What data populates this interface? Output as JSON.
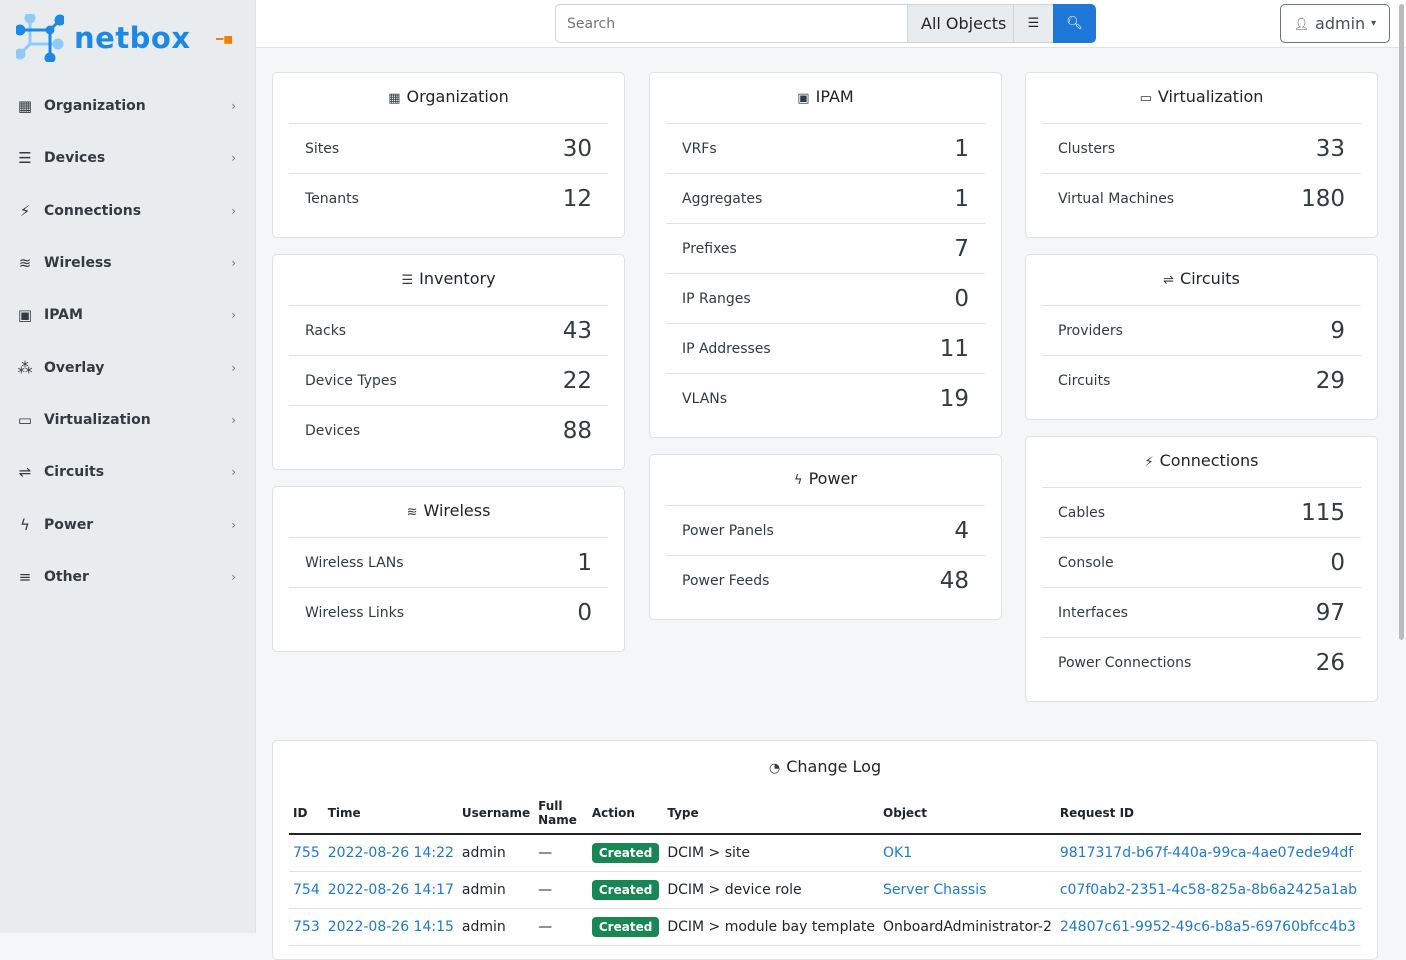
{
  "brand": {
    "name": "netbox",
    "accent": "#1e88e5"
  },
  "sidebar": {
    "items": [
      {
        "label": "Organization",
        "icon": "building-icon",
        "g": "▦"
      },
      {
        "label": "Devices",
        "icon": "server-icon",
        "g": "☰"
      },
      {
        "label": "Connections",
        "icon": "plug-icon",
        "g": "⚡"
      },
      {
        "label": "Wireless",
        "icon": "wifi-icon",
        "g": "≋"
      },
      {
        "label": "IPAM",
        "icon": "ip-icon",
        "g": "▣"
      },
      {
        "label": "Overlay",
        "icon": "graph-icon",
        "g": "⁂"
      },
      {
        "label": "Virtualization",
        "icon": "monitor-icon",
        "g": "▭"
      },
      {
        "label": "Circuits",
        "icon": "circuit-icon",
        "g": "⇌"
      },
      {
        "label": "Power",
        "icon": "flash-icon",
        "g": "ϟ"
      },
      {
        "label": "Other",
        "icon": "menu-icon",
        "g": "≡"
      }
    ]
  },
  "header": {
    "search_placeholder": "Search",
    "object_type": "All Objects",
    "user": "admin"
  },
  "cards": {
    "organization": {
      "title": "Organization",
      "rows": [
        [
          "Sites",
          "30"
        ],
        [
          "Tenants",
          "12"
        ]
      ]
    },
    "inventory": {
      "title": "Inventory",
      "rows": [
        [
          "Racks",
          "43"
        ],
        [
          "Device Types",
          "22"
        ],
        [
          "Devices",
          "88"
        ]
      ]
    },
    "wireless": {
      "title": "Wireless",
      "rows": [
        [
          "Wireless LANs",
          "1"
        ],
        [
          "Wireless Links",
          "0"
        ]
      ]
    },
    "ipam": {
      "title": "IPAM",
      "rows": [
        [
          "VRFs",
          "1"
        ],
        [
          "Aggregates",
          "1"
        ],
        [
          "Prefixes",
          "7"
        ],
        [
          "IP Ranges",
          "0"
        ],
        [
          "IP Addresses",
          "11"
        ],
        [
          "VLANs",
          "19"
        ]
      ]
    },
    "power": {
      "title": "Power",
      "rows": [
        [
          "Power Panels",
          "4"
        ],
        [
          "Power Feeds",
          "48"
        ]
      ]
    },
    "virtualization": {
      "title": "Virtualization",
      "rows": [
        [
          "Clusters",
          "33"
        ],
        [
          "Virtual Machines",
          "180"
        ]
      ]
    },
    "circuits": {
      "title": "Circuits",
      "rows": [
        [
          "Providers",
          "9"
        ],
        [
          "Circuits",
          "29"
        ]
      ]
    },
    "connections": {
      "title": "Connections",
      "rows": [
        [
          "Cables",
          "115"
        ],
        [
          "Console",
          "0"
        ],
        [
          "Interfaces",
          "97"
        ],
        [
          "Power Connections",
          "26"
        ]
      ]
    }
  },
  "changelog": {
    "title": "Change Log",
    "columns": [
      "ID",
      "Time",
      "Username",
      "Full Name",
      "Action",
      "Type",
      "Object",
      "Request ID"
    ],
    "rows": [
      {
        "id": "755",
        "time": "2022-08-26 14:22",
        "user": "admin",
        "full": "—",
        "action": "Created",
        "type": "DCIM > site",
        "object": "OK1",
        "object_link": true,
        "req": "9817317d-b67f-440a-99ca-4ae07ede94df"
      },
      {
        "id": "754",
        "time": "2022-08-26 14:17",
        "user": "admin",
        "full": "—",
        "action": "Created",
        "type": "DCIM > device role",
        "object": "Server Chassis",
        "object_link": true,
        "req": "c07f0ab2-2351-4c58-825a-8b6a2425a1ab"
      },
      {
        "id": "753",
        "time": "2022-08-26 14:15",
        "user": "admin",
        "full": "—",
        "action": "Created",
        "type": "DCIM > module bay template",
        "object": "OnboardAdministrator-2",
        "object_link": false,
        "req": "24807c61-9952-49c6-b8a5-69760bfcc4b3"
      }
    ]
  }
}
